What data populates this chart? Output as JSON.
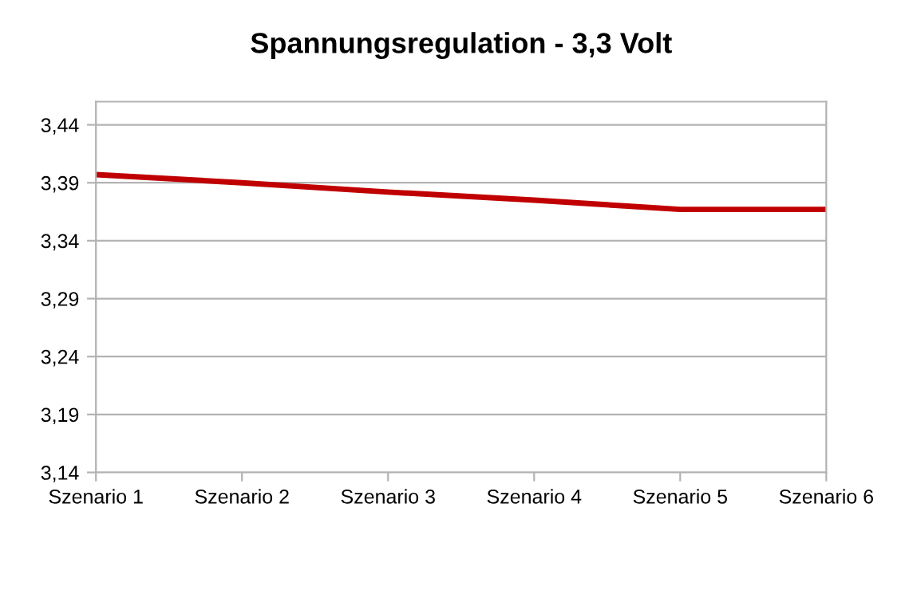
{
  "chart_data": {
    "type": "line",
    "title": "Spannungsregulation - 3,3 Volt",
    "categories": [
      "Szenario 1",
      "Szenario 2",
      "Szenario 3",
      "Szenario 4",
      "Szenario 5",
      "Szenario 6"
    ],
    "series": [
      {
        "color": "#c00000",
        "values": [
          3.397,
          3.39,
          3.382,
          3.375,
          3.367,
          3.367
        ]
      }
    ],
    "ylim": [
      3.14,
      3.46
    ],
    "yticks": [
      {
        "value": 3.14,
        "label": "3,14"
      },
      {
        "value": 3.19,
        "label": "3,19"
      },
      {
        "value": 3.24,
        "label": "3,24"
      },
      {
        "value": 3.29,
        "label": "3,29"
      },
      {
        "value": 3.34,
        "label": "3,34"
      },
      {
        "value": 3.39,
        "label": "3,39"
      },
      {
        "value": 3.44,
        "label": "3,44"
      }
    ],
    "grid": "y",
    "marker": "none",
    "line_style": "solid"
  }
}
